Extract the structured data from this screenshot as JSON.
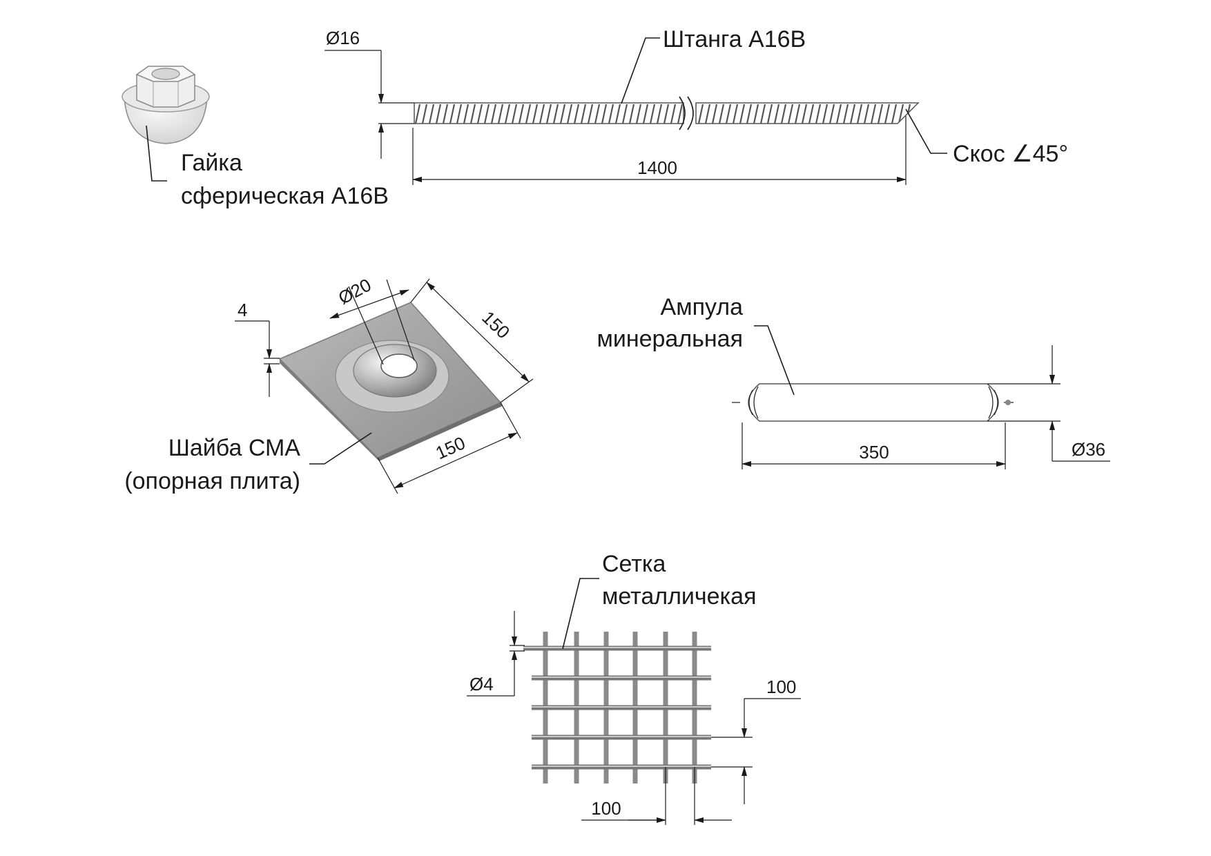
{
  "nut": {
    "label_line1": "Гайка",
    "label_line2": "сферическая А16В"
  },
  "rod": {
    "label": "Штанга А16В",
    "diameter": "Ø16",
    "length": "1400",
    "bevel": "Скос ∠45°"
  },
  "washer": {
    "label_line1": "Шайба СМА",
    "label_line2": "(опорная плита)",
    "hole_diameter": "Ø20",
    "thickness": "4",
    "side_a": "150",
    "side_b": "150"
  },
  "ampoule": {
    "label_line1": "Ампула",
    "label_line2": "минеральная",
    "length": "350",
    "diameter": "Ø36"
  },
  "mesh": {
    "label_line1": "Сетка",
    "label_line2": "металличекая",
    "wire_diameter": "Ø4",
    "pitch_vertical": "100",
    "pitch_horizontal": "100"
  }
}
